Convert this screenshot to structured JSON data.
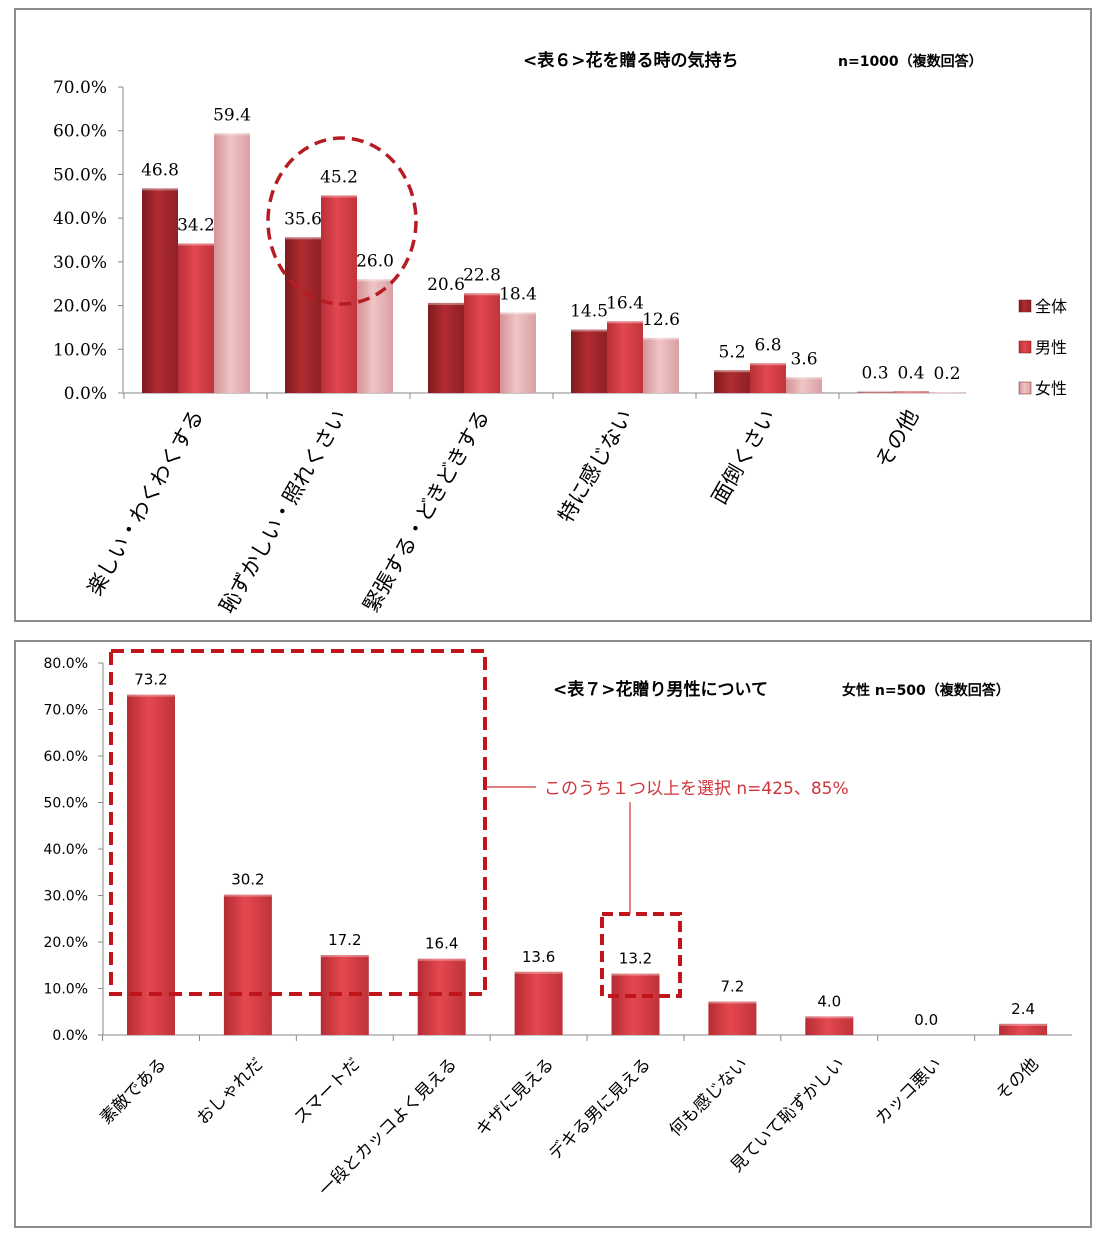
{
  "chart_data": [
    {
      "type": "bar",
      "title": "<表６>花を贈る時の気持ち",
      "subtitle": "n=1000（複数回答）",
      "categories": [
        "楽しい・わくわくする",
        "恥ずかしい・照れくさい",
        "緊張する・どきどきする",
        "特に感じない",
        "面倒くさい",
        "その他"
      ],
      "series": [
        {
          "name": "全体",
          "values": [
            46.8,
            35.6,
            20.6,
            14.5,
            5.2,
            0.3
          ],
          "labels": [
            "46.8",
            "35.6",
            "20.6",
            "14.5",
            "5.2",
            "0.3"
          ]
        },
        {
          "name": "男性",
          "values": [
            34.2,
            45.2,
            22.8,
            16.4,
            6.8,
            0.4
          ],
          "labels": [
            "34.2",
            "45.2",
            "22.8",
            "16.4",
            "6.8",
            "0.4"
          ]
        },
        {
          "name": "女性",
          "values": [
            59.4,
            26.0,
            18.4,
            12.6,
            3.6,
            0.2
          ],
          "labels": [
            "59.4",
            "26.0",
            "18.4",
            "12.6",
            "3.6",
            "0.2"
          ]
        }
      ],
      "yticks": [
        "0.0%",
        "10.0%",
        "20.0%",
        "30.0%",
        "40.0%",
        "50.0%",
        "60.0%",
        "70.0%"
      ],
      "ylim": [
        0,
        70
      ],
      "legend": "right",
      "colors": {
        "全体": "#a8282d",
        "男性": "#d83c44",
        "女性": "#e7b1b3"
      },
      "highlight": "恥ずかしい・照れくさい"
    },
    {
      "type": "bar",
      "title": "<表７>花贈り男性について",
      "subtitle": "女性 n=500（複数回答）",
      "categories": [
        "素敵である",
        "おしゃれだ",
        "スマートだ",
        "一段とカッコよく見える",
        "キザに見える",
        "デキる男に見える",
        "何も感じない",
        "見ていて恥ずかしい",
        "カッコ悪い",
        "その他"
      ],
      "values": [
        73.2,
        30.2,
        17.2,
        16.4,
        13.6,
        13.2,
        7.2,
        4.0,
        0.0,
        2.4
      ],
      "labels": [
        "73.2",
        "30.2",
        "17.2",
        "16.4",
        "13.6",
        "13.2",
        "7.2",
        "4.0",
        "0.0",
        "2.4"
      ],
      "yticks": [
        "0.0%",
        "10.0%",
        "20.0%",
        "30.0%",
        "40.0%",
        "50.0%",
        "60.0%",
        "70.0%",
        "80.0%"
      ],
      "ylim": [
        0,
        80
      ],
      "color": "#d63a41",
      "annotation": "このうち１つ以上を選択 n=425、85%"
    }
  ]
}
